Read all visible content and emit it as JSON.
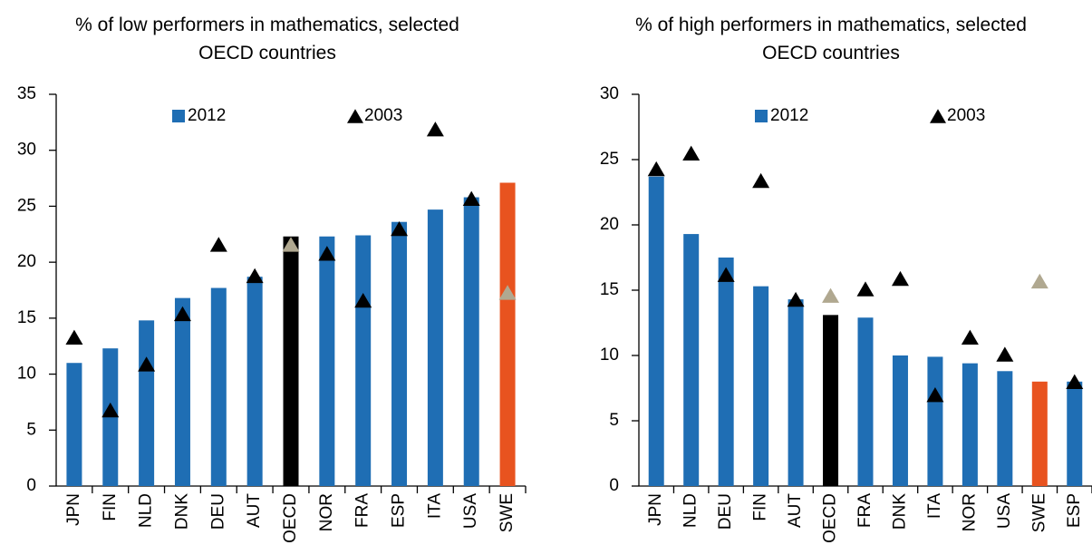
{
  "chart_data": [
    {
      "type": "bar",
      "title": "% of low performers in mathematics, selected OECD countries",
      "categories": [
        "JPN",
        "FIN",
        "NLD",
        "DNK",
        "DEU",
        "AUT",
        "OECD",
        "NOR",
        "FRA",
        "ESP",
        "ITA",
        "USA",
        "SWE"
      ],
      "series": [
        {
          "name": "2012",
          "color": "#1f6eb4",
          "marker": "bar",
          "colors": [
            "#1f6eb4",
            "#1f6eb4",
            "#1f6eb4",
            "#1f6eb4",
            "#1f6eb4",
            "#1f6eb4",
            "#000000",
            "#1f6eb4",
            "#1f6eb4",
            "#1f6eb4",
            "#1f6eb4",
            "#1f6eb4",
            "#e8531f"
          ],
          "values": [
            11.0,
            12.3,
            14.8,
            16.8,
            17.7,
            18.7,
            22.3,
            22.3,
            22.4,
            23.6,
            24.7,
            25.8,
            27.1
          ]
        },
        {
          "name": "2003",
          "color": "#000000",
          "marker": "triangle",
          "colors": [
            "#000000",
            "#000000",
            "#000000",
            "#000000",
            "#000000",
            "#000000",
            "#b0a890",
            "#000000",
            "#000000",
            "#000000",
            "#000000",
            "#000000",
            "#b0a890"
          ],
          "values": [
            13.3,
            6.8,
            10.9,
            15.4,
            21.6,
            18.8,
            21.6,
            20.8,
            16.6,
            23.0,
            31.9,
            25.7,
            17.3
          ]
        }
      ],
      "ylim": [
        0,
        35
      ],
      "yticks": [
        0,
        5,
        10,
        15,
        20,
        25,
        30,
        35
      ],
      "grid": false
    },
    {
      "type": "bar",
      "title": "% of high performers in mathematics, selected OECD countries",
      "categories": [
        "JPN",
        "NLD",
        "DEU",
        "FIN",
        "AUT",
        "OECD",
        "FRA",
        "DNK",
        "ITA",
        "NOR",
        "USA",
        "SWE",
        "ESP"
      ],
      "series": [
        {
          "name": "2012",
          "color": "#1f6eb4",
          "marker": "bar",
          "colors": [
            "#1f6eb4",
            "#1f6eb4",
            "#1f6eb4",
            "#1f6eb4",
            "#1f6eb4",
            "#000000",
            "#1f6eb4",
            "#1f6eb4",
            "#1f6eb4",
            "#1f6eb4",
            "#1f6eb4",
            "#e8531f",
            "#1f6eb4"
          ],
          "values": [
            23.7,
            19.3,
            17.5,
            15.3,
            14.3,
            13.1,
            12.9,
            10.0,
            9.9,
            9.4,
            8.8,
            8.0,
            8.0
          ]
        },
        {
          "name": "2003",
          "color": "#000000",
          "marker": "triangle",
          "colors": [
            "#000000",
            "#000000",
            "#000000",
            "#000000",
            "#000000",
            "#b0a890",
            "#000000",
            "#000000",
            "#000000",
            "#000000",
            "#000000",
            "#b0a890",
            "#000000"
          ],
          "values": [
            24.3,
            25.5,
            16.2,
            23.4,
            14.3,
            14.6,
            15.1,
            15.9,
            7.0,
            11.4,
            10.1,
            15.7,
            8.0
          ]
        }
      ],
      "ylim": [
        0,
        30
      ],
      "yticks": [
        0,
        5,
        10,
        15,
        20,
        25,
        30
      ],
      "grid": false
    }
  ]
}
